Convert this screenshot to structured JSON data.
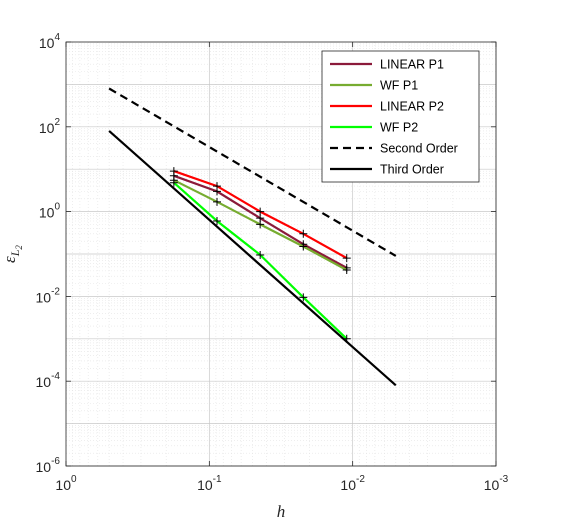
{
  "chart_data": {
    "type": "line",
    "title": "",
    "xlabel": "h",
    "ylabel": "ε_{L_2}",
    "ylabel_main": "ε",
    "ylabel_sub": "L",
    "ylabel_subsub": "2",
    "x_scale": "log",
    "y_scale": "log",
    "x_reversed": true,
    "xlim": [
      1,
      0.001
    ],
    "ylim": [
      1e-06,
      10000
    ],
    "grid": true,
    "minor_grid": true,
    "legend_position": "top-right",
    "x_ticks": [
      {
        "value": 1,
        "base": "10",
        "exp": "0"
      },
      {
        "value": 0.1,
        "base": "10",
        "exp": "-1"
      },
      {
        "value": 0.01,
        "base": "10",
        "exp": "-2"
      },
      {
        "value": 0.001,
        "base": "10",
        "exp": "-3"
      }
    ],
    "y_ticks": [
      {
        "value": 1e-06,
        "base": "10",
        "exp": "-6"
      },
      {
        "value": 0.0001,
        "base": "10",
        "exp": "-4"
      },
      {
        "value": 0.01,
        "base": "10",
        "exp": "-2"
      },
      {
        "value": 1,
        "base": "10",
        "exp": "0"
      },
      {
        "value": 100,
        "base": "10",
        "exp": "2"
      },
      {
        "value": 10000,
        "base": "10",
        "exp": "4"
      }
    ],
    "series": [
      {
        "name": "LINEAR P1",
        "color": "#8b1a3a",
        "style": "solid",
        "marker": "+",
        "x": [
          0.1768,
          0.0884,
          0.0442,
          0.0221,
          0.011
        ],
        "y": [
          7.0,
          3.0,
          0.7,
          0.17,
          0.047
        ]
      },
      {
        "name": "WF P1",
        "color": "#77ac30",
        "style": "solid",
        "marker": "+",
        "x": [
          0.1768,
          0.0884,
          0.0442,
          0.0221,
          0.011
        ],
        "y": [
          5.5,
          1.7,
          0.5,
          0.15,
          0.042
        ]
      },
      {
        "name": "LINEAR P2",
        "color": "#ff0000",
        "style": "solid",
        "marker": "+",
        "x": [
          0.1768,
          0.0884,
          0.0442,
          0.0221,
          0.011
        ],
        "y": [
          9.0,
          4.0,
          1.0,
          0.3,
          0.08
        ]
      },
      {
        "name": "WF P2",
        "color": "#00ff00",
        "style": "solid",
        "marker": "+",
        "x": [
          0.1768,
          0.0884,
          0.0442,
          0.0221,
          0.011
        ],
        "y": [
          4.8,
          0.6,
          0.095,
          0.0095,
          0.001
        ]
      },
      {
        "name": "Second Order",
        "color": "#000000",
        "style": "dashed",
        "marker": "none",
        "x": [
          0.5,
          0.005
        ],
        "y": [
          800,
          0.09
        ]
      },
      {
        "name": "Third Order",
        "color": "#000000",
        "style": "solid",
        "marker": "none",
        "x": [
          0.5,
          0.005
        ],
        "y": [
          80,
          8e-05
        ]
      }
    ]
  }
}
